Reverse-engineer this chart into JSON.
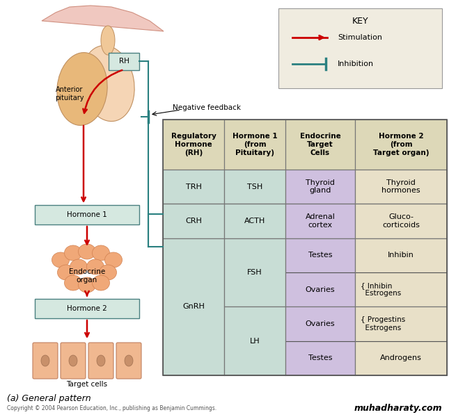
{
  "bg_color": "#ffffff",
  "header_bg": "#ddd8b8",
  "cell_bg_green": "#c8ddd5",
  "cell_bg_purple": "#cfc0df",
  "cell_bg_light": "#e8e0c8",
  "col_headers": [
    "Regulatory\nHormone\n(RH)",
    "Hormone 1\n(from\nPituitary)",
    "Endocrine\nTarget\nCells",
    "Hormone 2\n(from\nTarget organ)"
  ],
  "key_title": "KEY",
  "key_stim": "Stimulation",
  "key_inhib": "Inhibition",
  "neg_feedback": "Negative feedback",
  "label_ant_pit": "Anterior\npituitary",
  "label_h1": "Hormone 1",
  "label_h2": "Hormone 2",
  "label_endo": "Endocrine\norgan",
  "label_target": "Target cells",
  "label_general": "(a) General pattern",
  "copyright": "Copyright © 2004 Pearson Education, Inc., publishing as Benjamin Cummings.",
  "website": "muhadharaty.com",
  "red_arrow": "#cc0000",
  "teal_line": "#2a8080",
  "box_border": "#4a8080",
  "box_fill": "#d5e8e0"
}
